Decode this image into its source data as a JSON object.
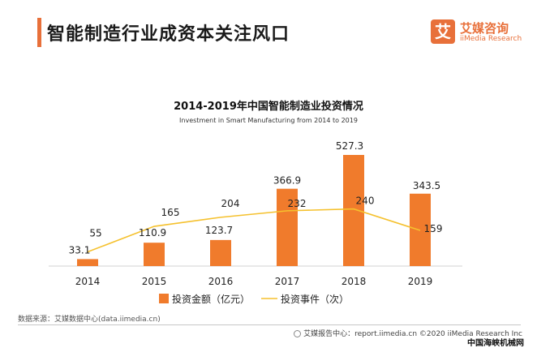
{
  "header": {
    "title": "智能制造行业成资本关注风口"
  },
  "logo": {
    "mark": "艾",
    "name_cn": "艾媒咨询",
    "name_en": "iiMedia Research"
  },
  "chart_data": {
    "type": "bar",
    "title": "2014-2019年中国智能制造业投资情况",
    "subtitle": "Investment in Smart Manufacturing from 2014 to 2019",
    "categories": [
      "2014",
      "2015",
      "2016",
      "2017",
      "2018",
      "2019"
    ],
    "series": [
      {
        "name": "投资金额（亿元）",
        "type": "bar",
        "color": "#f07b2c",
        "values": [
          33.1,
          110.9,
          123.7,
          366.9,
          527.3,
          343.5
        ]
      },
      {
        "name": "投资事件（次）",
        "type": "line",
        "color": "#f5c12e",
        "values": [
          55,
          165,
          204,
          232,
          240,
          159
        ]
      }
    ],
    "legend_position": "bottom",
    "grid": false,
    "ylim": [
      0,
      540
    ]
  },
  "footer": {
    "source": "数据来源：艾媒数据中心(data.iimedia.cn)",
    "copyright": "艾媒报告中心：report.iimedia.cn  ©2020  iiMedia Research  Inc",
    "watermark": "中国海峡机械网"
  }
}
